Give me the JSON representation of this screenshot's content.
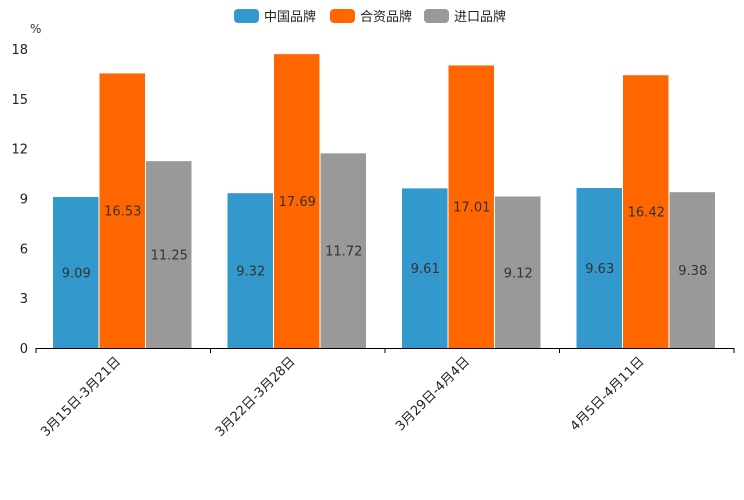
{
  "chart_data": {
    "type": "bar",
    "title": "",
    "ylabel": "%",
    "xlabel": "",
    "ylim": [
      0,
      18
    ],
    "yticks": [
      0,
      3,
      6,
      9,
      12,
      15,
      18
    ],
    "yticks_labels": [
      "0",
      "3",
      "6",
      "9",
      "12",
      "15",
      "18"
    ],
    "legend_position": "top-center",
    "categories": [
      "3月15日-3月21日",
      "3月22日-3月28日",
      "3月29日-4月4日",
      "4月5日-4月11日"
    ],
    "series": [
      {
        "name": "中国品牌",
        "color": "#3399cc",
        "values": [
          9.09,
          9.32,
          9.61,
          9.63
        ],
        "labels": [
          "9.09",
          "9.32",
          "9.61",
          "9.63"
        ]
      },
      {
        "name": "合资品牌",
        "color": "#ff6600",
        "values": [
          16.53,
          17.69,
          17.01,
          16.42
        ],
        "labels": [
          "16.53",
          "17.69",
          "17.01",
          "16.42"
        ]
      },
      {
        "name": "进口品牌",
        "color": "#999999",
        "values": [
          11.25,
          11.72,
          9.12,
          9.38
        ],
        "labels": [
          "11.25",
          "11.72",
          "9.12",
          "9.38"
        ]
      }
    ]
  }
}
